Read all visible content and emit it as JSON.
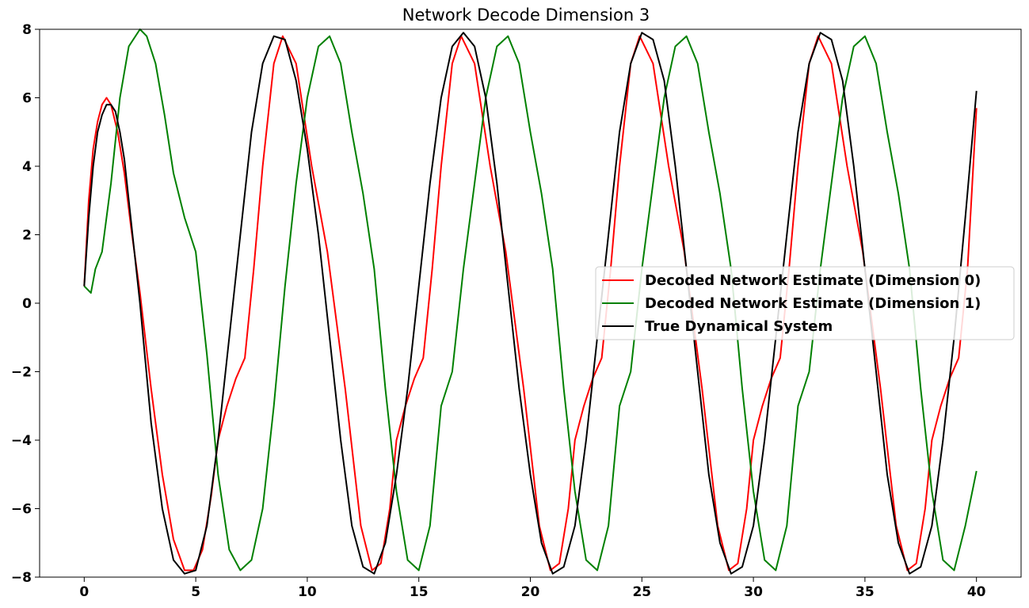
{
  "chart_data": {
    "type": "line",
    "title": "Network Decode Dimension 3",
    "xlabel": "",
    "ylabel": "",
    "xlim": [
      -2,
      42
    ],
    "ylim": [
      -8,
      8
    ],
    "xticks": [
      0,
      5,
      10,
      15,
      20,
      25,
      30,
      35,
      40
    ],
    "xtick_labels": [
      "0",
      "5",
      "10",
      "15",
      "20",
      "25",
      "30",
      "35",
      "40"
    ],
    "yticks": [
      -8,
      -6,
      -4,
      -2,
      0,
      2,
      4,
      6,
      8
    ],
    "ytick_labels": [
      "−8",
      "−6",
      "−4",
      "−2",
      "0",
      "2",
      "4",
      "6",
      "8"
    ],
    "grid": false,
    "legend_position": "center-right",
    "series": [
      {
        "name": "Decoded Network Estimate (Dimension 0)",
        "color": "#ff0000",
        "x": [
          0,
          0.2,
          0.4,
          0.6,
          0.8,
          1.0,
          1.2,
          1.5,
          1.8,
          2.1,
          2.5,
          3.0,
          3.5,
          4.0,
          4.5,
          4.9,
          5.3,
          5.7,
          6.0,
          6.4,
          6.8,
          7.2,
          7.6,
          8.0,
          8.5,
          8.9,
          9.5,
          10.2,
          10.9,
          11.7,
          12.4,
          12.9,
          13.3,
          13.7,
          14.0,
          14.4,
          14.8,
          15.2,
          15.6,
          16.0,
          16.5,
          16.9,
          17.5,
          18.2,
          18.9,
          19.7,
          20.4,
          20.9,
          21.3,
          21.7,
          22.0,
          22.4,
          22.8,
          23.2,
          23.6,
          24.0,
          24.5,
          24.9,
          25.5,
          26.2,
          26.9,
          27.7,
          28.4,
          28.9,
          29.3,
          29.7,
          30.0,
          30.4,
          30.8,
          31.2,
          31.6,
          32.0,
          32.5,
          32.9,
          33.5,
          34.2,
          34.9,
          35.7,
          36.4,
          36.9,
          37.3,
          37.7,
          38.0,
          38.4,
          38.8,
          39.2,
          39.6,
          40.0
        ],
        "values": [
          0.5,
          3.0,
          4.5,
          5.3,
          5.8,
          6.0,
          5.8,
          5.0,
          3.8,
          2.2,
          0.3,
          -2.5,
          -5.0,
          -6.9,
          -7.8,
          -7.8,
          -7.2,
          -5.6,
          -4.0,
          -3.0,
          -2.2,
          -1.6,
          1.0,
          4.0,
          7.0,
          7.8,
          7.0,
          4.0,
          1.5,
          -2.5,
          -6.5,
          -7.8,
          -7.6,
          -6.0,
          -4.0,
          -3.0,
          -2.2,
          -1.6,
          1.0,
          4.0,
          7.0,
          7.8,
          7.0,
          4.0,
          1.5,
          -2.5,
          -6.5,
          -7.8,
          -7.6,
          -6.0,
          -4.0,
          -3.0,
          -2.2,
          -1.6,
          1.0,
          4.0,
          7.0,
          7.8,
          7.0,
          4.0,
          1.5,
          -2.5,
          -6.5,
          -7.8,
          -7.6,
          -6.0,
          -4.0,
          -3.0,
          -2.2,
          -1.6,
          1.0,
          4.0,
          7.0,
          7.8,
          7.0,
          4.0,
          1.5,
          -2.5,
          -6.5,
          -7.8,
          -7.6,
          -6.0,
          -4.0,
          -3.0,
          -2.2,
          -1.6,
          1.0,
          5.7
        ]
      },
      {
        "name": "Decoded Network Estimate (Dimension 1)",
        "color": "#008000",
        "x": [
          0,
          0.3,
          0.5,
          0.8,
          1.2,
          1.6,
          2.0,
          2.5,
          2.8,
          3.2,
          3.6,
          4.0,
          4.5,
          5.0,
          5.5,
          6.0,
          6.5,
          7.0,
          7.5,
          8.0,
          8.5,
          9.0,
          9.5,
          10.0,
          10.5,
          11.0,
          11.5,
          12.0,
          12.5,
          13.0,
          13.5,
          14.0,
          14.5,
          15.0,
          15.5,
          16.0,
          16.5,
          17.0,
          17.5,
          18.0,
          18.5,
          19.0,
          19.5,
          20.0,
          20.5,
          21.0,
          21.5,
          22.0,
          22.5,
          23.0,
          23.5,
          24.0,
          24.5,
          25.0,
          25.5,
          26.0,
          26.5,
          27.0,
          27.5,
          28.0,
          28.5,
          29.0,
          29.5,
          30.0,
          30.5,
          31.0,
          31.5,
          32.0,
          32.5,
          33.0,
          33.5,
          34.0,
          34.5,
          35.0,
          35.5,
          36.0,
          36.5,
          37.0,
          37.5,
          38.0,
          38.5,
          39.0,
          39.5,
          40.0
        ],
        "values": [
          0.5,
          0.3,
          1.0,
          1.5,
          3.5,
          6.0,
          7.5,
          8.0,
          7.8,
          7.0,
          5.5,
          3.8,
          2.5,
          1.5,
          -1.5,
          -5.0,
          -7.2,
          -7.8,
          -7.5,
          -6.0,
          -3.0,
          0.5,
          3.5,
          6.0,
          7.5,
          7.8,
          7.0,
          5.0,
          3.2,
          1.0,
          -2.5,
          -5.5,
          -7.5,
          -7.8,
          -6.5,
          -3.0,
          -2.0,
          1.0,
          3.5,
          6.0,
          7.5,
          7.8,
          7.0,
          5.0,
          3.2,
          1.0,
          -2.5,
          -5.5,
          -7.5,
          -7.8,
          -6.5,
          -3.0,
          -2.0,
          1.0,
          3.5,
          6.0,
          7.5,
          7.8,
          7.0,
          5.0,
          3.2,
          1.0,
          -2.5,
          -5.5,
          -7.5,
          -7.8,
          -6.5,
          -3.0,
          -2.0,
          1.0,
          3.5,
          6.0,
          7.5,
          7.8,
          7.0,
          5.0,
          3.2,
          1.0,
          -2.5,
          -5.5,
          -7.5,
          -7.8,
          -6.5,
          -4.9
        ]
      },
      {
        "name": "True Dynamical System",
        "color": "#000000",
        "x": [
          0,
          0.2,
          0.4,
          0.6,
          0.8,
          1.0,
          1.2,
          1.4,
          1.6,
          1.8,
          2.0,
          2.5,
          3.0,
          3.5,
          4.0,
          4.5,
          5.0,
          5.5,
          6.0,
          6.5,
          7.0,
          7.5,
          8.0,
          8.5,
          9.0,
          9.5,
          10.0,
          10.5,
          11.0,
          11.5,
          12.0,
          12.5,
          13.0,
          13.5,
          14.0,
          14.5,
          15.0,
          15.5,
          16.0,
          16.5,
          17.0,
          17.5,
          18.0,
          18.5,
          19.0,
          19.5,
          20.0,
          20.5,
          21.0,
          21.5,
          22.0,
          22.5,
          23.0,
          23.5,
          24.0,
          24.5,
          25.0,
          25.5,
          26.0,
          26.5,
          27.0,
          27.5,
          28.0,
          28.5,
          29.0,
          29.5,
          30.0,
          30.5,
          31.0,
          31.5,
          32.0,
          32.5,
          33.0,
          33.5,
          34.0,
          34.5,
          35.0,
          35.5,
          36.0,
          36.5,
          37.0,
          37.5,
          38.0,
          38.5,
          39.0,
          39.5,
          40.0
        ],
        "values": [
          0.5,
          2.5,
          4.0,
          5.0,
          5.5,
          5.8,
          5.8,
          5.6,
          5.0,
          4.2,
          3.0,
          0.0,
          -3.5,
          -6.0,
          -7.5,
          -7.9,
          -7.8,
          -6.5,
          -4.0,
          -1.0,
          2.0,
          5.0,
          7.0,
          7.8,
          7.7,
          6.5,
          4.5,
          2.0,
          -1.0,
          -4.0,
          -6.5,
          -7.7,
          -7.9,
          -7.0,
          -5.0,
          -2.5,
          0.5,
          3.5,
          6.0,
          7.5,
          7.9,
          7.5,
          6.0,
          3.5,
          0.5,
          -2.5,
          -5.0,
          -7.0,
          -7.9,
          -7.7,
          -6.5,
          -4.0,
          -1.0,
          2.0,
          5.0,
          7.0,
          7.9,
          7.7,
          6.5,
          4.0,
          1.0,
          -2.0,
          -5.0,
          -7.0,
          -7.9,
          -7.7,
          -6.5,
          -4.0,
          -1.0,
          2.0,
          5.0,
          7.0,
          7.9,
          7.7,
          6.5,
          4.0,
          1.0,
          -2.0,
          -5.0,
          -7.0,
          -7.9,
          -7.7,
          -6.5,
          -4.0,
          -1.0,
          2.5,
          6.2
        ]
      }
    ]
  }
}
